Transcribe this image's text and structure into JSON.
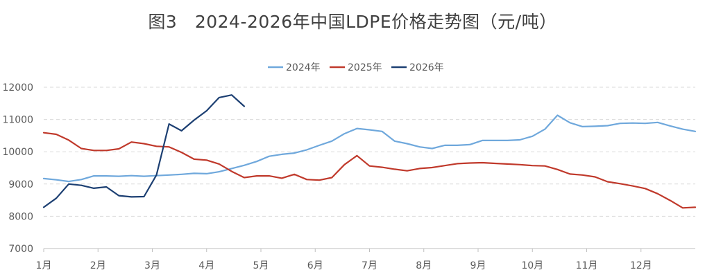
{
  "chart_data": {
    "type": "line",
    "title": "图3　2024-2026年中国LDPE价格走势图（元/吨）",
    "xlabel": "",
    "ylabel": "",
    "ylim": [
      7000,
      12000
    ],
    "yticks": [
      7000,
      8000,
      9000,
      10000,
      11000,
      12000
    ],
    "month_labels": [
      "1月",
      "2月",
      "3月",
      "4月",
      "5月",
      "6月",
      "7月",
      "8月",
      "9月",
      "10月",
      "11月",
      "12月"
    ],
    "x_unit": "week index (0-52)",
    "legend_position": "top-center",
    "grid": "horizontal dashed",
    "series": [
      {
        "name": "2024年",
        "color": "#6fa8dc",
        "x": [
          0,
          1,
          2,
          3,
          4,
          5,
          6,
          7,
          8,
          9,
          10,
          11,
          12,
          13,
          14,
          15,
          16,
          17,
          18,
          19,
          20,
          21,
          22,
          23,
          24,
          25,
          26,
          27,
          28,
          29,
          30,
          31,
          32,
          33,
          34,
          35,
          36,
          37,
          38,
          39,
          40,
          41,
          42,
          43,
          44,
          45,
          46,
          47,
          48,
          49,
          50,
          51,
          52
        ],
        "values": [
          9170,
          9130,
          9080,
          9140,
          9250,
          9250,
          9240,
          9260,
          9240,
          9260,
          9280,
          9300,
          9330,
          9320,
          9380,
          9480,
          9580,
          9700,
          9860,
          9920,
          9960,
          10060,
          10200,
          10330,
          10560,
          10720,
          10680,
          10630,
          10330,
          10250,
          10150,
          10100,
          10200,
          10200,
          10220,
          10350,
          10350,
          10350,
          10370,
          10480,
          10700,
          11130,
          10900,
          10780,
          10790,
          10810,
          10880,
          10890,
          10880,
          10910,
          10800,
          10700,
          10630
        ]
      },
      {
        "name": "2025年",
        "color": "#c0392b",
        "x": [
          0,
          1,
          2,
          3,
          4,
          5,
          6,
          7,
          8,
          9,
          10,
          11,
          12,
          13,
          14,
          15,
          16,
          17,
          18,
          19,
          20,
          21,
          22,
          23,
          24,
          25,
          26,
          27,
          28,
          29,
          30,
          31,
          32,
          33,
          34,
          35,
          36,
          37,
          38,
          39,
          40,
          41,
          42,
          43,
          44,
          45,
          46,
          47,
          48,
          49,
          50,
          51,
          52
        ],
        "values": [
          10590,
          10540,
          10360,
          10100,
          10040,
          10040,
          10090,
          10300,
          10250,
          10170,
          10150,
          9980,
          9770,
          9740,
          9620,
          9390,
          9200,
          9250,
          9250,
          9180,
          9300,
          9140,
          9120,
          9200,
          9600,
          9880,
          9560,
          9520,
          9460,
          9410,
          9480,
          9510,
          9570,
          9630,
          9650,
          9660,
          9640,
          9620,
          9600,
          9570,
          9560,
          9450,
          9310,
          9280,
          9220,
          9070,
          9010,
          8940,
          8860,
          8700,
          8490,
          8260,
          8280
        ]
      },
      {
        "name": "2026年",
        "color": "#1c3f72",
        "x": [
          0,
          1,
          2,
          3,
          4,
          5,
          6,
          7,
          8,
          9,
          10,
          11,
          12,
          13,
          14,
          15,
          16
        ],
        "values": [
          8280,
          8560,
          9000,
          8960,
          8870,
          8910,
          8640,
          8600,
          8610,
          9280,
          10860,
          10650,
          10980,
          11270,
          11680,
          11760,
          11410
        ]
      }
    ]
  }
}
